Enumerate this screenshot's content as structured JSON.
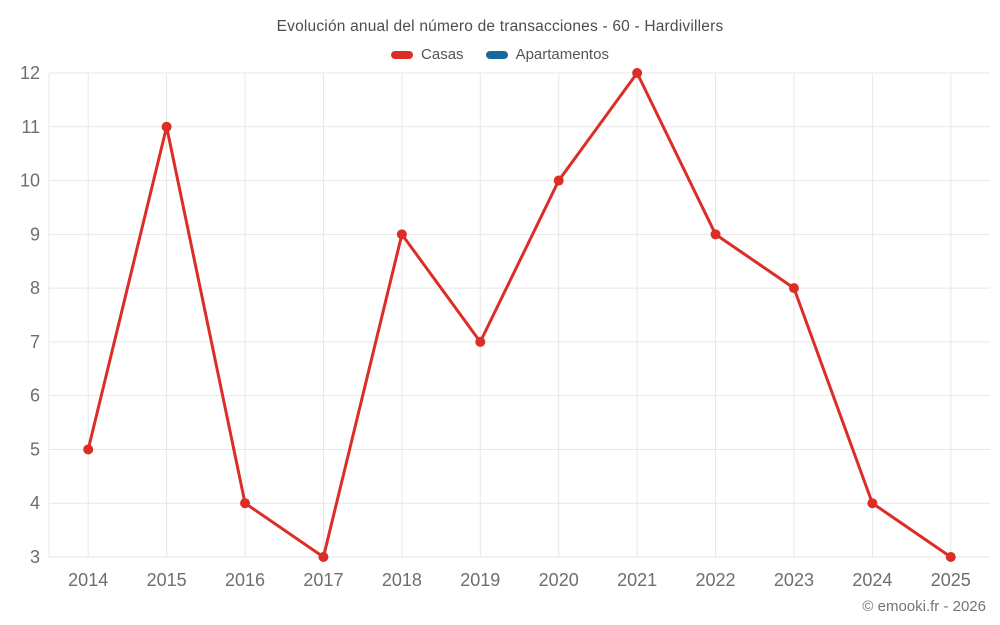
{
  "header": {
    "title": "Evolución anual del número de transacciones - 60 - Hardivillers"
  },
  "legend": {
    "items": [
      {
        "label": "Casas",
        "color": "#dc2e27"
      },
      {
        "label": "Apartamentos",
        "color": "#17699c"
      }
    ]
  },
  "footer": {
    "credit": "© emooki.fr - 2026"
  },
  "colors": {
    "casas_line": "#dc2e27",
    "apartamentos_swatch": "#17699c",
    "gridline": "#e7e7e7",
    "axis_label": "#6e6e6e",
    "title_text": "#4d4d4d",
    "background": "#ffffff"
  },
  "chart_data": {
    "type": "line",
    "title": "Evolución anual del número de transacciones - 60 - Hardivillers",
    "categories": [
      "2014",
      "2015",
      "2016",
      "2017",
      "2018",
      "2019",
      "2020",
      "2021",
      "2022",
      "2023",
      "2024",
      "2025"
    ],
    "series": [
      {
        "name": "Casas",
        "color": "#dc2e27",
        "values": [
          5,
          11,
          4,
          3,
          9,
          7,
          10,
          12,
          9,
          8,
          4,
          3
        ]
      },
      {
        "name": "Apartamentos",
        "color": "#17699c",
        "values": []
      }
    ],
    "xlabel": "",
    "ylabel": "",
    "ylim": [
      3,
      12
    ],
    "yticks": [
      3,
      4,
      5,
      6,
      7,
      8,
      9,
      10,
      11,
      12
    ],
    "grid": true,
    "legend_position": "top",
    "marker": "circle",
    "marker_radius": 5,
    "line_width": 3
  }
}
